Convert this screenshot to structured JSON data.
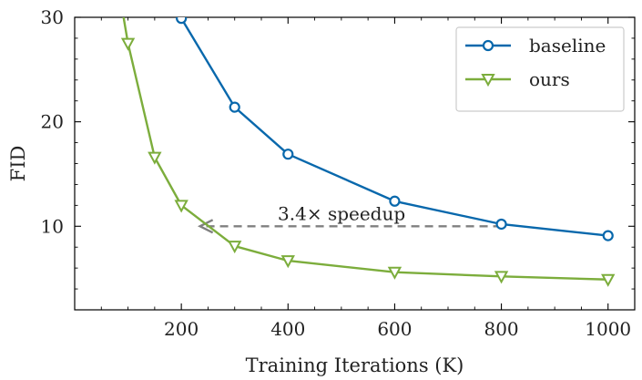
{
  "chart_data": {
    "type": "line",
    "xlabel": "Training Iterations (K)",
    "ylabel": "FID",
    "xlim": [
      0,
      1050
    ],
    "ylim": [
      2,
      30
    ],
    "x_ticks": [
      200,
      400,
      600,
      800,
      1000
    ],
    "y_ticks": [
      10,
      20,
      30
    ],
    "grid": false,
    "legend_position": "top-right",
    "series": [
      {
        "name": "baseline",
        "marker": "circle",
        "color": "#0868ac",
        "x": [
          200,
          300,
          400,
          600,
          800,
          1000
        ],
        "y": [
          29.9,
          21.4,
          16.9,
          12.4,
          10.2,
          9.1
        ]
      },
      {
        "name": "ours",
        "marker": "triangle-down",
        "color": "#7cad3c",
        "x": [
          90,
          100,
          150,
          200,
          300,
          400,
          600,
          800,
          1000
        ],
        "y": [
          30.5,
          27.5,
          16.6,
          12.0,
          8.1,
          6.7,
          5.6,
          5.2,
          4.9
        ],
        "first_point_has_marker": false
      }
    ],
    "annotations": [
      {
        "text": "3.4× speedup",
        "arrow_from": [
          800,
          10.0
        ],
        "arrow_to": [
          235,
          10.0
        ],
        "style": "dashed",
        "color": "#808080"
      }
    ]
  }
}
